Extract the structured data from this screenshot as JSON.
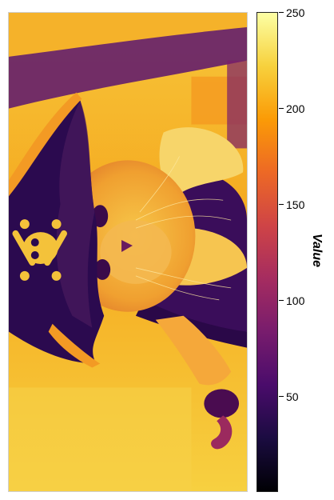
{
  "image": {
    "subject": "cat-in-pirate-costume",
    "colormap": "inferno",
    "orientation": "rotated-90"
  },
  "colorbar": {
    "label": "Value",
    "min": 0,
    "max": 250,
    "ticks": [
      "250",
      "200",
      "150",
      "100",
      "50"
    ],
    "tick_values": [
      250,
      200,
      150,
      100,
      50
    ],
    "colors": [
      "#000004",
      "#1b0c41",
      "#4a0c6b",
      "#781c6d",
      "#a52c60",
      "#cf4446",
      "#ed6925",
      "#fb9b06",
      "#f7d13d",
      "#fcffa4"
    ]
  }
}
